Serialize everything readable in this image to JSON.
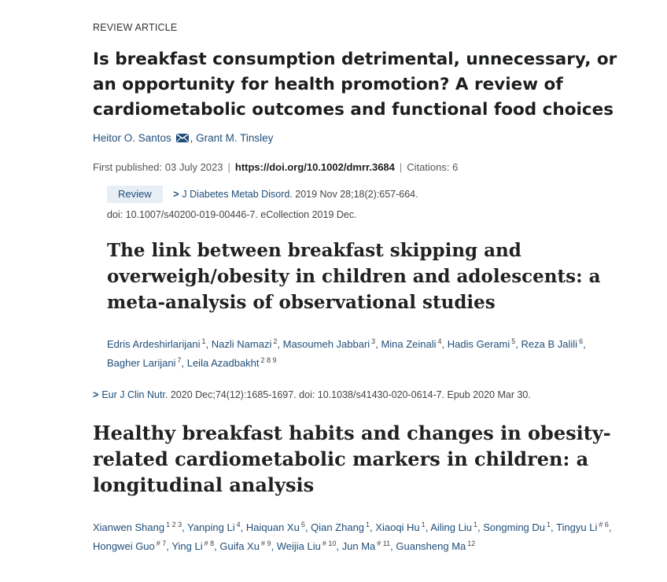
{
  "article1": {
    "label": "REVIEW ARTICLE",
    "title": "Is breakfast consumption detrimental, unnecessary, or an opportunity for health promotion? A review of cardiometabolic outcomes and functional food choices",
    "authors": [
      "Heitor O. Santos",
      "Grant M. Tinsley"
    ],
    "first_published_label": "First published: 03 July 2023",
    "doi": "https://doi.org/10.1002/dmrr.3684",
    "citations": "Citations: 6"
  },
  "article2": {
    "badge": "Review",
    "chevron": ">",
    "journal": "J Diabetes Metab Disord.",
    "citation": " 2019 Nov 28;18(2):657-664.",
    "doi_line": "doi: 10.1007/s40200-019-00446-7. eCollection 2019 Dec.",
    "title": "The link between breakfast skipping and overweigh/obesity in children and adolescents: a meta-analysis of observational studies",
    "authors": [
      {
        "name": "Edris Ardeshirlarijani",
        "sup": "1",
        "sep": ","
      },
      {
        "name": "Nazli Namazi",
        "sup": "2",
        "sep": ","
      },
      {
        "name": "Masoumeh Jabbari",
        "sup": "3",
        "sep": ","
      },
      {
        "name": "Mina Zeinali",
        "sup": "4",
        "sep": ","
      },
      {
        "name": "Hadis Gerami",
        "sup": "5",
        "sep": ","
      },
      {
        "name": "Reza B Jalili",
        "sup": "6",
        "sep": ","
      },
      {
        "name": "Bagher Larijani",
        "sup": "7",
        "sep": ","
      },
      {
        "name": "Leila Azadbakht",
        "sup": "2 8 9",
        "sep": ""
      }
    ]
  },
  "article3": {
    "chevron": ">",
    "journal": "Eur J Clin Nutr.",
    "citation": " 2020 Dec;74(12):1685-1697. doi: 10.1038/s41430-020-0614-7. Epub 2020 Mar 30.",
    "title": "Healthy breakfast habits and changes in obesity-related cardiometabolic markers in children: a longitudinal analysis",
    "authors": [
      {
        "name": "Xianwen Shang",
        "sup": "1 2 3",
        "sep": ","
      },
      {
        "name": "Yanping Li",
        "sup": "4",
        "sep": ","
      },
      {
        "name": "Haiquan Xu",
        "sup": "5",
        "sep": ","
      },
      {
        "name": "Qian Zhang",
        "sup": "1",
        "sep": ","
      },
      {
        "name": "Xiaoqi Hu",
        "sup": "1",
        "sep": ","
      },
      {
        "name": "Ailing Liu",
        "sup": "1",
        "sep": ","
      },
      {
        "name": "Songming Du",
        "sup": "1",
        "sep": ","
      },
      {
        "name": "Tingyu Li",
        "sup": "# 6",
        "sep": ","
      },
      {
        "name": "Hongwei Guo",
        "sup": "# 7",
        "sep": ","
      },
      {
        "name": "Ying Li",
        "sup": "# 8",
        "sep": ","
      },
      {
        "name": "Guifa Xu",
        "sup": "# 9",
        "sep": ","
      },
      {
        "name": "Weijia Liu",
        "sup": "# 10",
        "sep": ","
      },
      {
        "name": "Jun Ma",
        "sup": "# 11",
        "sep": ","
      },
      {
        "name": "Guansheng Ma",
        "sup": "12",
        "sep": ""
      }
    ]
  },
  "icons": {
    "mail": "envelope-icon",
    "chevron": "chevron-right-icon"
  },
  "colors": {
    "link": "#1f4e79",
    "badge_bg": "#e8eef6",
    "text": "#1c1d1e"
  }
}
